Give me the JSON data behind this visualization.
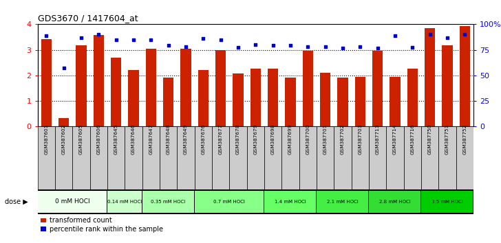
{
  "title": "GDS3670 / 1417604_at",
  "samples": [
    "GSM387601",
    "GSM387602",
    "GSM387605",
    "GSM387606",
    "GSM387645",
    "GSM387646",
    "GSM387647",
    "GSM387648",
    "GSM387649",
    "GSM387676",
    "GSM387677",
    "GSM387678",
    "GSM387679",
    "GSM387698",
    "GSM387699",
    "GSM387700",
    "GSM387701",
    "GSM387702",
    "GSM387703",
    "GSM387713",
    "GSM387714",
    "GSM387716",
    "GSM387750",
    "GSM387751",
    "GSM387752"
  ],
  "bar_values": [
    3.42,
    0.33,
    3.18,
    3.58,
    2.7,
    2.22,
    3.05,
    1.92,
    3.05,
    2.22,
    3.0,
    2.08,
    2.25,
    2.25,
    1.9,
    2.95,
    2.1,
    1.92,
    1.95,
    2.95,
    1.95,
    2.25,
    3.85,
    3.18,
    3.92
  ],
  "percentile_values": [
    88.75,
    57.0,
    87.0,
    90.5,
    84.5,
    84.5,
    84.5,
    79.5,
    78.0,
    86.0,
    84.5,
    77.5,
    80.0,
    79.5,
    79.5,
    78.0,
    78.0,
    77.0,
    78.0,
    77.0,
    88.75,
    77.5,
    90.5,
    87.0,
    90.5
  ],
  "dose_groups": [
    {
      "label": "0 mM HOCl",
      "start": 0,
      "end": 4,
      "color": "#eeffee"
    },
    {
      "label": "0.14 mM HOCl",
      "start": 4,
      "end": 6,
      "color": "#ccffcc"
    },
    {
      "label": "0.35 mM HOCl",
      "start": 6,
      "end": 9,
      "color": "#aaffaa"
    },
    {
      "label": "0.7 mM HOCl",
      "start": 9,
      "end": 13,
      "color": "#88ff88"
    },
    {
      "label": "1.4 mM HOCl",
      "start": 13,
      "end": 16,
      "color": "#66ff66"
    },
    {
      "label": "2.1 mM HOCl",
      "start": 16,
      "end": 19,
      "color": "#44ee44"
    },
    {
      "label": "2.8 mM HOCl",
      "start": 19,
      "end": 22,
      "color": "#33dd33"
    },
    {
      "label": "3.5 mM HOCl",
      "start": 22,
      "end": 25,
      "color": "#00cc00"
    }
  ],
  "bar_color": "#cc2200",
  "dot_color": "#0000cc",
  "ylim_left": [
    0,
    4
  ],
  "yticks_left": [
    0,
    1,
    2,
    3,
    4
  ],
  "yticks_right": [
    0,
    25,
    50,
    75,
    100
  ],
  "sample_cell_color": "#cccccc",
  "background_color": "#ffffff",
  "legend_items": [
    "transformed count",
    "percentile rank within the sample"
  ],
  "dose_label_fontsize": 6.5,
  "sample_label_fontsize": 5.2
}
